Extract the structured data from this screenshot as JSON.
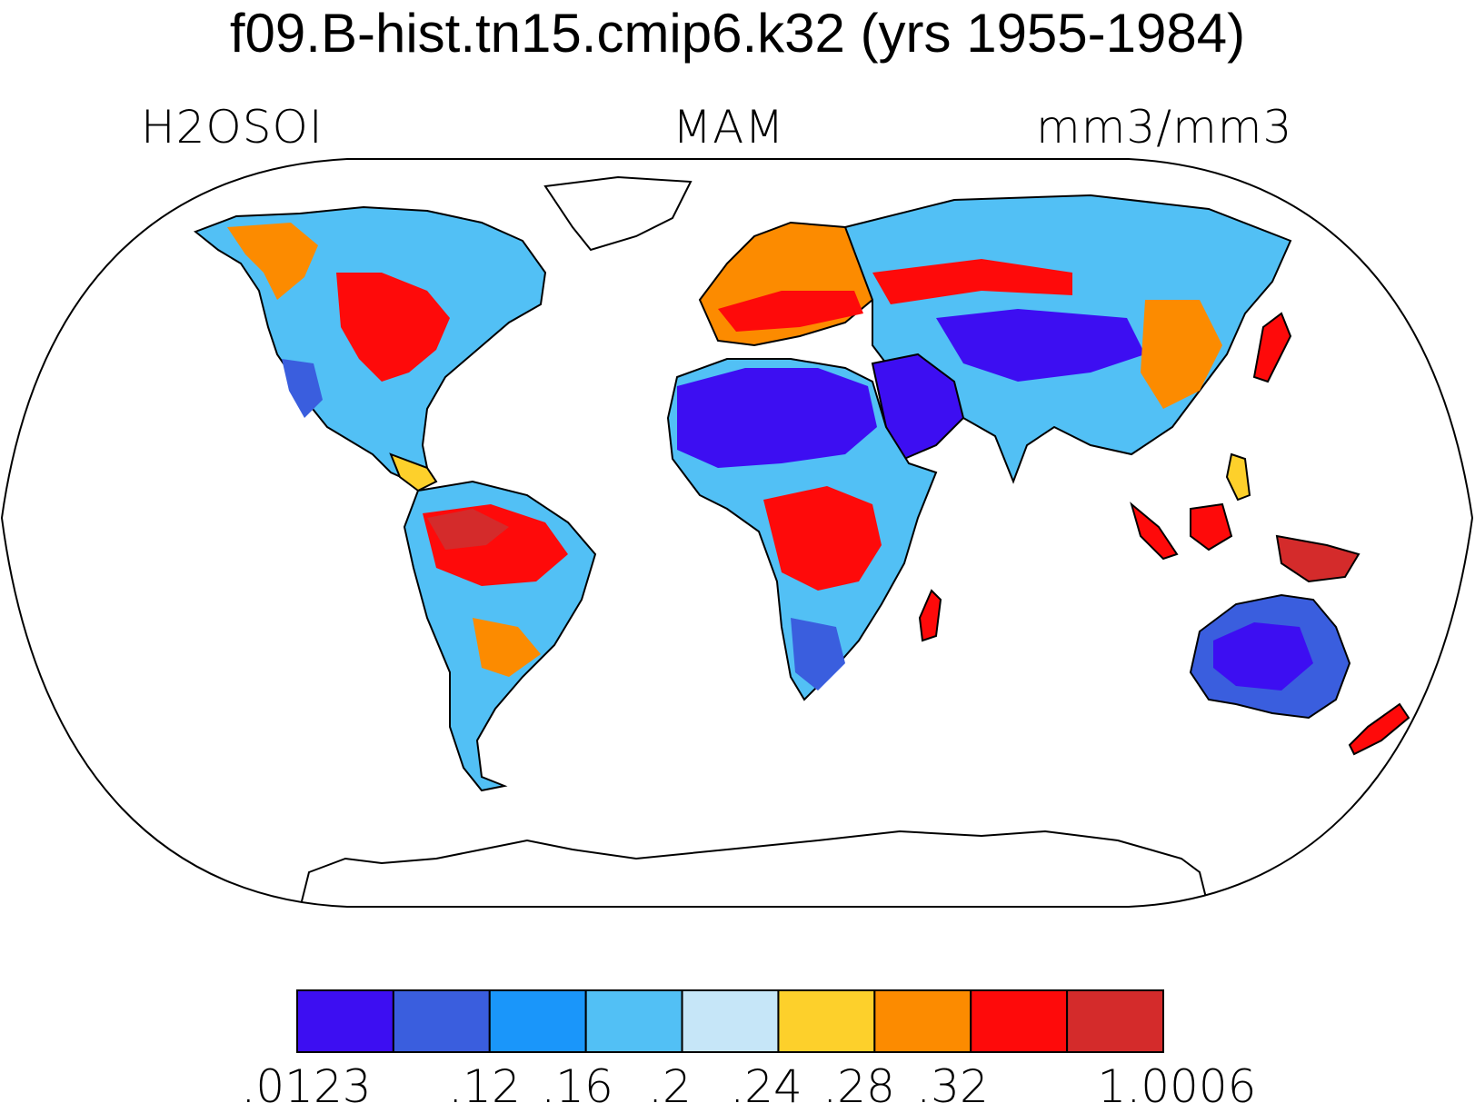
{
  "title": "f09.B-hist.tn15.cmip6.k32 (yrs 1955-1984)",
  "left_label": "H2OSOI",
  "center_label": "MAM",
  "right_label": "mm3/mm3",
  "colorbar": {
    "colors": [
      "#3d0ef2",
      "#3a5ede",
      "#1a96fa",
      "#52c0f5",
      "#c6e6f8",
      "#fdd02b",
      "#fc8b00",
      "#fe0a0a",
      "#d42b2b"
    ],
    "labels": [
      ".0123",
      ".12",
      ".16",
      ".2",
      ".24",
      ".28",
      ".32",
      "1.0006"
    ]
  },
  "colors": {
    "ocean": "#ffffff",
    "coastline": "#000000",
    "ice": "#ffffff"
  }
}
